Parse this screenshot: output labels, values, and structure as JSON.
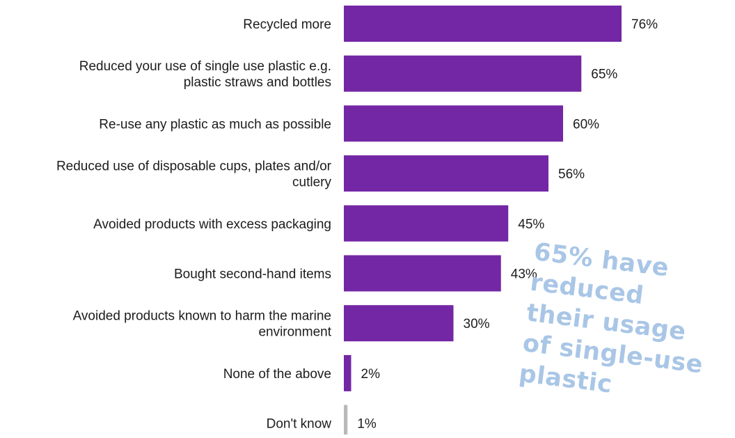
{
  "chart_data": {
    "type": "bar",
    "orientation": "horizontal",
    "categories": [
      [
        "Recycled more"
      ],
      [
        "Reduced your use of single use plastic e.g.",
        "plastic straws and bottles"
      ],
      [
        "Re-use any plastic as much as possible"
      ],
      [
        "Reduced use of disposable cups, plates and/or",
        "cutlery"
      ],
      [
        "Avoided products with excess packaging"
      ],
      [
        "Bought second-hand items"
      ],
      [
        "Avoided products known to harm the marine",
        "environment"
      ],
      [
        "None of the above"
      ],
      [
        "Don't know"
      ]
    ],
    "values": [
      76,
      65,
      60,
      56,
      45,
      43,
      30,
      2,
      1
    ],
    "value_labels": [
      "76%",
      "65%",
      "60%",
      "56%",
      "45%",
      "43%",
      "30%",
      "2%",
      "1%"
    ],
    "bar_colors": [
      "#7327a5",
      "#7327a5",
      "#7327a5",
      "#7327a5",
      "#7327a5",
      "#7327a5",
      "#7327a5",
      "#7327a5",
      "#b9b9b9"
    ],
    "xlim": [
      0,
      100
    ],
    "title": "",
    "xlabel": "",
    "ylabel": ""
  },
  "callout": {
    "lines": [
      "65% have",
      "reduced",
      "their usage",
      "of single-use",
      "plastic"
    ],
    "color": "#a9c6e6"
  }
}
